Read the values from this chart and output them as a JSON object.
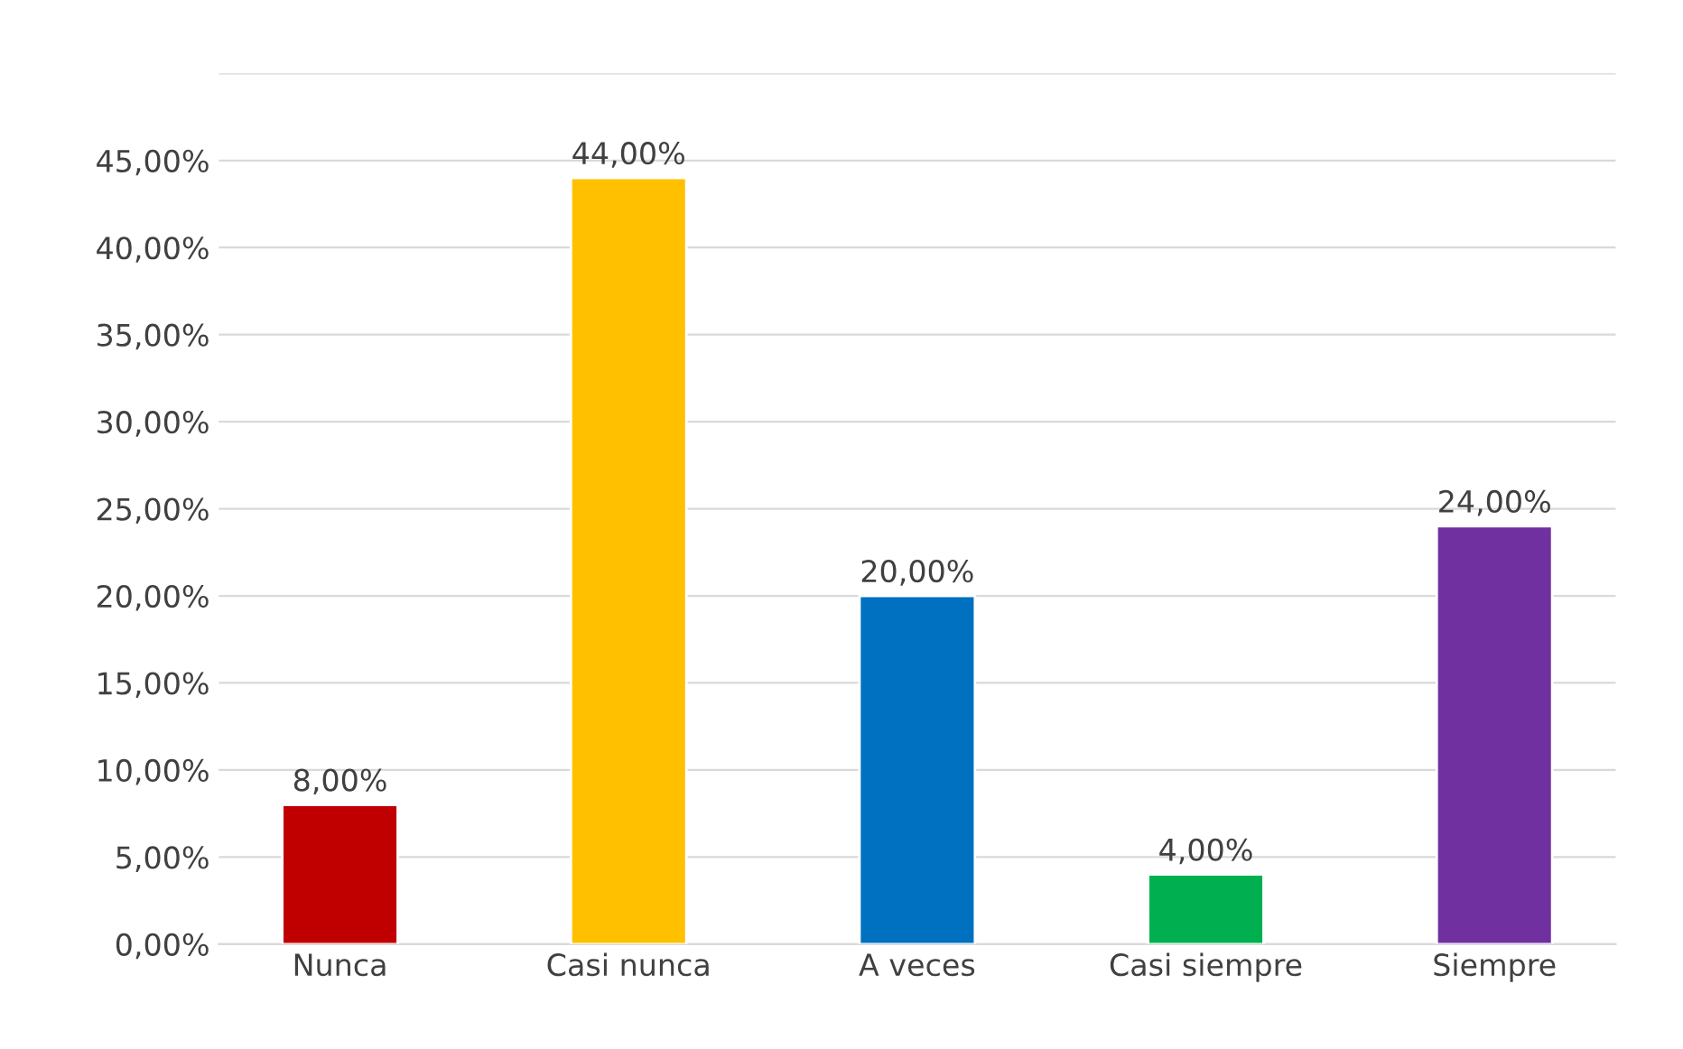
{
  "chart_data": {
    "type": "bar",
    "categories": [
      "Nunca",
      "Casi nunca",
      "A veces",
      "Casi siempre",
      "Siempre"
    ],
    "values": [
      8,
      44,
      20,
      4,
      24
    ],
    "colors": [
      "#c00000",
      "#ffc000",
      "#0070c0",
      "#00b050",
      "#7030a0"
    ],
    "value_labels": [
      "8,00%",
      "44,00%",
      "20,00%",
      "4,00%",
      "24,00%"
    ],
    "ylim": [
      0,
      50
    ],
    "yticks": [
      {
        "value": 0,
        "label": "0,00%"
      },
      {
        "value": 5,
        "label": "5,00%"
      },
      {
        "value": 10,
        "label": "10,00%"
      },
      {
        "value": 15,
        "label": "15,00%"
      },
      {
        "value": 20,
        "label": "20,00%"
      },
      {
        "value": 25,
        "label": "25,00%"
      },
      {
        "value": 30,
        "label": "30,00%"
      },
      {
        "value": 35,
        "label": "35,00%"
      },
      {
        "value": 40,
        "label": "40,00%"
      },
      {
        "value": 45,
        "label": "45,00%"
      },
      {
        "value": 50,
        "label": null
      }
    ],
    "grid": "y"
  }
}
